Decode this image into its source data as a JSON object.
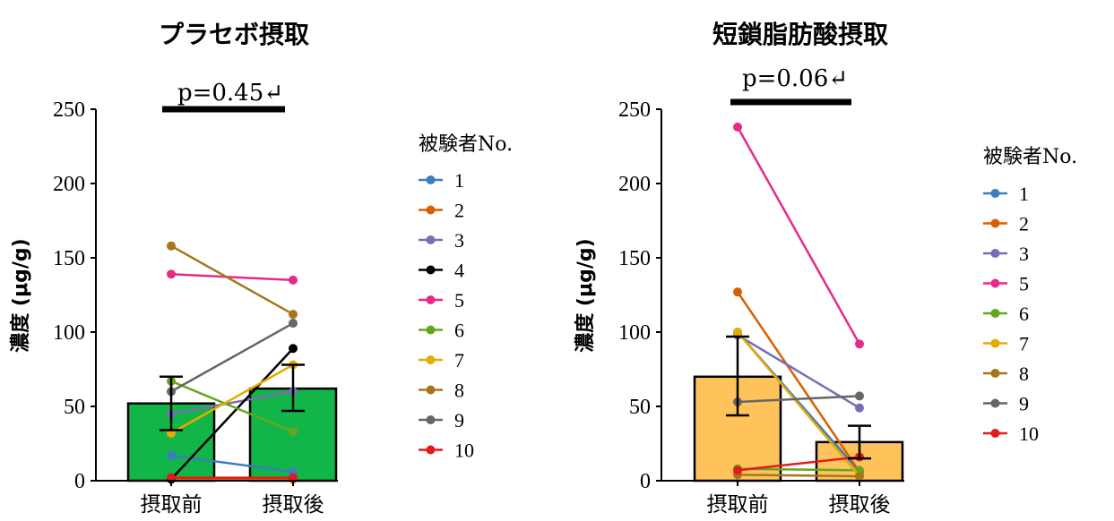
{
  "chart_data": [
    {
      "type": "bar",
      "title": "プラセボ摂取",
      "pvalue_label": "p=0.45↵",
      "ylabel": "濃度 (μg/g)",
      "ylim": [
        0,
        250
      ],
      "yticks": [
        "0",
        "50",
        "100",
        "150",
        "200",
        "250"
      ],
      "categories": [
        "摂取前",
        "摂取後"
      ],
      "bar_values": [
        52,
        62
      ],
      "bar_color": "#12b548",
      "error": [
        {
          "low": 34,
          "high": 70
        },
        {
          "low": 47,
          "high": 78
        }
      ],
      "legend_title": "被験者No.",
      "series": [
        {
          "name": "1",
          "color": "#3b7dbd",
          "values": [
            17,
            6
          ]
        },
        {
          "name": "2",
          "color": "#d95f02",
          "values": [
            1,
            1
          ]
        },
        {
          "name": "3",
          "color": "#7570b3",
          "values": [
            45,
            60
          ]
        },
        {
          "name": "4",
          "color": "#000000",
          "values": [
            1,
            89
          ]
        },
        {
          "name": "5",
          "color": "#e7298a",
          "values": [
            139,
            135
          ]
        },
        {
          "name": "6",
          "color": "#66a61e",
          "values": [
            67,
            33
          ]
        },
        {
          "name": "7",
          "color": "#e6ab02",
          "values": [
            32,
            78
          ]
        },
        {
          "name": "8",
          "color": "#a6761d",
          "values": [
            158,
            112
          ]
        },
        {
          "name": "9",
          "color": "#666666",
          "values": [
            60,
            106
          ]
        },
        {
          "name": "10",
          "color": "#e31a1c",
          "values": [
            2,
            2
          ]
        }
      ]
    },
    {
      "type": "bar",
      "title": "短鎖脂肪酸摂取",
      "pvalue_label": "p=0.06↵",
      "ylabel": "濃度 (μg/g)",
      "ylim": [
        0,
        250
      ],
      "yticks": [
        "0",
        "50",
        "100",
        "150",
        "200",
        "250"
      ],
      "categories": [
        "摂取前",
        "摂取後"
      ],
      "bar_values": [
        70,
        26
      ],
      "bar_color": "#fec35b",
      "error": [
        {
          "low": 44,
          "high": 97
        },
        {
          "low": 15,
          "high": 37
        }
      ],
      "legend_title": "被験者No.",
      "series": [
        {
          "name": "1",
          "color": "#3b7dbd",
          "values": [
            100,
            6
          ]
        },
        {
          "name": "2",
          "color": "#d95f02",
          "values": [
            127,
            6
          ]
        },
        {
          "name": "3",
          "color": "#7570b3",
          "values": [
            98,
            49
          ]
        },
        {
          "name": "5",
          "color": "#e7298a",
          "values": [
            238,
            92
          ]
        },
        {
          "name": "6",
          "color": "#66a61e",
          "values": [
            8,
            7
          ]
        },
        {
          "name": "7",
          "color": "#e6ab02",
          "values": [
            100,
            3
          ]
        },
        {
          "name": "8",
          "color": "#a6761d",
          "values": [
            4,
            3
          ]
        },
        {
          "name": "9",
          "color": "#666666",
          "values": [
            53,
            57
          ]
        },
        {
          "name": "10",
          "color": "#e31a1c",
          "values": [
            7,
            16
          ]
        }
      ]
    }
  ]
}
